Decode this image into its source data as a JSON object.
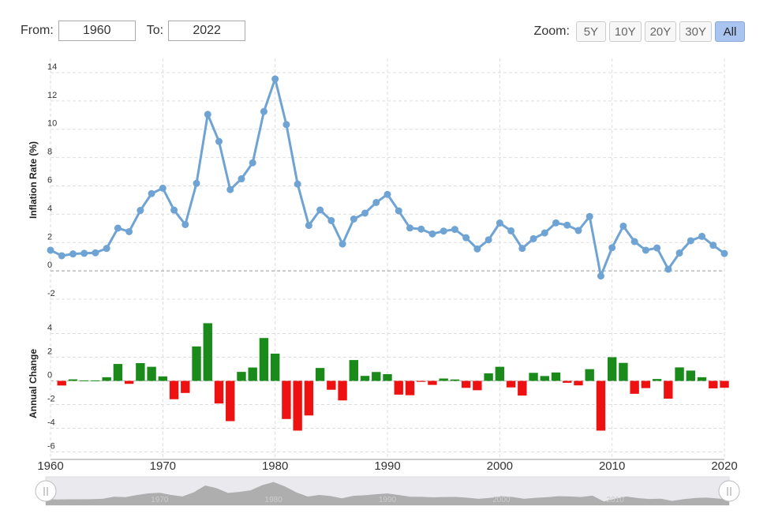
{
  "controls": {
    "from_label": "From:",
    "from_value": "1960",
    "to_label": "To:",
    "to_value": "2022",
    "zoom_label": "Zoom:",
    "zoom_options": [
      "5Y",
      "10Y",
      "20Y",
      "30Y",
      "All"
    ],
    "zoom_selected": "All"
  },
  "colors": {
    "line": "#6ea3d3",
    "positive": "#1a8a1a",
    "negative": "#ee1111",
    "grid": "#dddddd"
  },
  "chart_data": [
    {
      "type": "line",
      "ylabel": "Inflation Rate (%)",
      "ylim": [
        -3,
        15
      ],
      "yticks": [
        -2,
        0,
        2,
        4,
        6,
        8,
        10,
        12,
        14
      ],
      "grid": true,
      "x": [
        1960,
        1961,
        1962,
        1963,
        1964,
        1965,
        1966,
        1967,
        1968,
        1969,
        1970,
        1971,
        1972,
        1973,
        1974,
        1975,
        1976,
        1977,
        1978,
        1979,
        1980,
        1981,
        1982,
        1983,
        1984,
        1985,
        1986,
        1987,
        1988,
        1989,
        1990,
        1991,
        1992,
        1993,
        1994,
        1995,
        1996,
        1997,
        1998,
        1999,
        2000,
        2001,
        2002,
        2003,
        2004,
        2005,
        2006,
        2007,
        2008,
        2009,
        2010,
        2011,
        2012,
        2013,
        2014,
        2015,
        2016,
        2017,
        2018,
        2019,
        2020
      ],
      "values": [
        1.46,
        1.07,
        1.2,
        1.24,
        1.28,
        1.59,
        3.02,
        2.77,
        4.27,
        5.46,
        5.84,
        4.29,
        3.27,
        6.18,
        11.05,
        9.14,
        5.74,
        6.5,
        7.63,
        11.25,
        13.55,
        10.33,
        6.13,
        3.21,
        4.3,
        3.55,
        1.9,
        3.66,
        4.08,
        4.83,
        5.4,
        4.24,
        3.03,
        2.95,
        2.61,
        2.81,
        2.93,
        2.34,
        1.55,
        2.19,
        3.38,
        2.83,
        1.59,
        2.27,
        2.68,
        3.39,
        3.23,
        2.85,
        3.84,
        -0.36,
        1.64,
        3.16,
        2.07,
        1.46,
        1.62,
        0.12,
        1.26,
        2.13,
        2.44,
        1.81,
        1.23
      ]
    },
    {
      "type": "bar",
      "ylabel": "Annual Change",
      "ylim": [
        -6.5,
        5.5
      ],
      "yticks": [
        -6,
        -4,
        -2,
        0,
        2,
        4
      ],
      "grid": true,
      "x": [
        1961,
        1962,
        1963,
        1964,
        1965,
        1966,
        1967,
        1968,
        1969,
        1970,
        1971,
        1972,
        1973,
        1974,
        1975,
        1976,
        1977,
        1978,
        1979,
        1980,
        1981,
        1982,
        1983,
        1984,
        1985,
        1986,
        1987,
        1988,
        1989,
        1990,
        1991,
        1992,
        1993,
        1994,
        1995,
        1996,
        1997,
        1998,
        1999,
        2000,
        2001,
        2002,
        2003,
        2004,
        2005,
        2006,
        2007,
        2008,
        2009,
        2010,
        2011,
        2012,
        2013,
        2014,
        2015,
        2016,
        2017,
        2018,
        2019,
        2020
      ],
      "values": [
        -0.39,
        0.13,
        0.04,
        0.04,
        0.31,
        1.43,
        -0.25,
        1.5,
        1.19,
        0.38,
        -1.55,
        -1.02,
        2.91,
        4.87,
        -1.91,
        -3.4,
        0.76,
        1.13,
        3.62,
        2.3,
        -3.22,
        -4.2,
        -2.92,
        1.09,
        -0.75,
        -1.65,
        1.76,
        0.42,
        0.75,
        0.57,
        -1.16,
        -1.21,
        -0.08,
        -0.34,
        0.2,
        0.12,
        -0.59,
        -0.79,
        0.64,
        1.19,
        -0.55,
        -1.24,
        0.68,
        0.41,
        0.71,
        -0.16,
        -0.38,
        0.99,
        -4.2,
        2.0,
        1.52,
        -1.09,
        -0.61,
        0.16,
        -1.5,
        1.14,
        0.87,
        0.31,
        -0.63,
        -0.58
      ]
    }
  ],
  "x_axis": {
    "tick_labels": [
      "1960",
      "1970",
      "1980",
      "1990",
      "2000",
      "2010",
      "2020"
    ],
    "range": [
      1960,
      2020
    ]
  },
  "navigator": {
    "labels": [
      "1970",
      "1980",
      "1990",
      "2000",
      "2010"
    ]
  }
}
